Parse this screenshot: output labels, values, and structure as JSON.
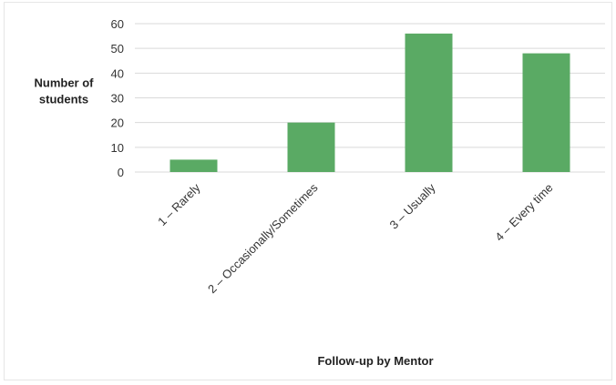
{
  "chart_data": {
    "type": "bar",
    "categories": [
      "1 – Rarely",
      "2 – Occasionally/Sometimes",
      "3 – Usually",
      "4 – Every time"
    ],
    "values": [
      5,
      20,
      56,
      48
    ],
    "xlabel": "Follow-up by Mentor",
    "ylabel_lines": [
      "Number of",
      "students"
    ],
    "ylim": [
      0,
      60
    ],
    "yticks": [
      0,
      10,
      20,
      30,
      40,
      50,
      60
    ],
    "grid": true,
    "legend": "none",
    "bar_color": "#5aaa64",
    "grid_color": "#d9d9d9"
  }
}
